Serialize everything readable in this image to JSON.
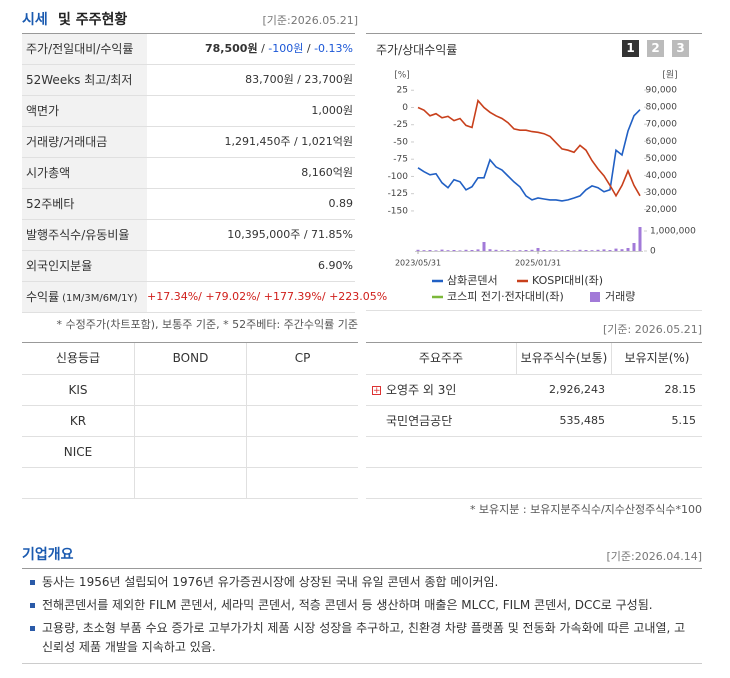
{
  "market": {
    "title_a": "시세",
    "title_b": "및 주주현황",
    "date": "[기준:2026.05.21]",
    "rows": [
      {
        "label": "주가/전일대비/수익률",
        "value": [
          {
            "text": "78,500원",
            "bold": true
          },
          {
            "text": " / "
          },
          {
            "text": "-100원",
            "color": "#1a56d6"
          },
          {
            "text": " / "
          },
          {
            "text": "-0.13%",
            "color": "#1a56d6"
          }
        ]
      },
      {
        "label": "52Weeks 최고/최저",
        "value": [
          {
            "text": "83,700원 / 23,700원"
          }
        ]
      },
      {
        "label": "액면가",
        "value": [
          {
            "text": "1,000원"
          }
        ]
      },
      {
        "label": "거래량/거래대금",
        "value": [
          {
            "text": "1,291,450주 / 1,021억원"
          }
        ]
      },
      {
        "label": "시가총액",
        "value": [
          {
            "text": "8,160억원"
          }
        ]
      },
      {
        "label": "52주베타",
        "value": [
          {
            "text": "0.89"
          }
        ]
      },
      {
        "label": "발행주식수/유동비율",
        "value": [
          {
            "text": "10,395,000주 / 71.85%"
          }
        ]
      },
      {
        "label": "외국인지분율",
        "value": [
          {
            "text": "6.90%"
          }
        ]
      },
      {
        "label": "수익률",
        "sublabel": "(1M/3M/6M/1Y)",
        "value": [
          {
            "text": "+17.34%/ +79.02%/ +177.39%/ +223.05%",
            "color": "#d0201c"
          }
        ]
      }
    ],
    "footnote": "* 수정주가(차트포함), 보통주 기준, * 52주베타: 주간수익률 기준",
    "chart_buttons": [
      "1",
      "2",
      "3"
    ],
    "active_button": 0
  },
  "credit": {
    "headers": [
      "신용등급",
      "BOND",
      "CP"
    ],
    "rows": [
      [
        "KIS"
      ],
      [
        "KR"
      ],
      [
        "NICE"
      ]
    ]
  },
  "holders": {
    "date": "[기준: 2026.05.21]",
    "headers": [
      "주요주주",
      "보유주식수(보통)",
      "보유지분(%)"
    ],
    "rows": [
      [
        "오영주 외 3인",
        "2,926,243",
        "28.15"
      ],
      [
        "국민연금공단",
        "535,485",
        "5.15"
      ]
    ],
    "note": "* 보유지분 : 보유지분주식수/지수산정주식수*100"
  },
  "overview": {
    "title": "기업개요",
    "date": "[기준:2026.04.14]",
    "items": [
      "동사는 1956년 설립되어 1976년 유가증권시장에 상장된 국내 유일 콘덴서 종합 메이커임.",
      "전해콘덴서를 제외한 FILM 콘덴서, 세라믹 콘덴서, 적층 콘덴서 등 생산하며 매출은 MLCC, FILM 콘덴서, DCC로 구성됨.",
      "고용량, 초소형 부품 수요 증가로 고부가가치 제품 시장 성장을 추구하고, 친환경 차량 플랫폼 및 전동화 가속화에 따른 고내열, 고신뢰성 제품 개발을 지속하고 있음."
    ]
  },
  "chart_data": [
    {
      "type": "line",
      "title": "주가/상대수익률",
      "y_unit": "[%]",
      "y2_unit": "[원]",
      "categories": [
        "2023/05/31",
        null,
        null,
        null,
        null,
        null,
        null,
        null,
        null,
        null,
        null,
        null,
        null,
        null,
        null,
        null,
        null,
        null,
        null,
        null,
        "2025/01/31",
        null,
        null,
        null,
        null,
        null,
        null,
        null,
        null,
        null,
        null,
        null,
        null,
        null,
        null,
        null,
        null,
        null
      ],
      "series": [
        {
          "name": "삼화콘덴서",
          "color": "#2160c4",
          "axis": "y2",
          "values": [
            44500,
            42200,
            40400,
            41000,
            35700,
            32800,
            37500,
            36300,
            31600,
            33400,
            38600,
            38600,
            49100,
            45000,
            43200,
            39700,
            36200,
            33300,
            28000,
            25700,
            26800,
            26200,
            25700,
            25700,
            25100,
            25700,
            26800,
            28000,
            31600,
            33900,
            32800,
            30400,
            31600,
            54800,
            52000,
            66000,
            75000,
            78500
          ]
        },
        {
          "name": "KOSPI대비(좌)",
          "color": "#c8401c",
          "values": [
            0,
            -4,
            -12,
            -9,
            -15,
            -13,
            -19,
            -16,
            -26,
            -29,
            10,
            0,
            -7,
            -12,
            -16,
            -22,
            -31,
            -33,
            -33,
            -35,
            -36,
            -38,
            -42,
            -51,
            -60,
            -62,
            -65,
            -55,
            -62,
            -77,
            -89,
            -99,
            -113,
            -128,
            -113,
            -92,
            -113,
            -128
          ]
        },
        {
          "name": "코스피 전기·전자대비(좌)",
          "color": "#7cb83a",
          "values": [
            null,
            null,
            null,
            null,
            null,
            null,
            null,
            null,
            null,
            null,
            null,
            null,
            null,
            null,
            null,
            null,
            null,
            null,
            null,
            null,
            null,
            null,
            null,
            null,
            null,
            null,
            null,
            null,
            null,
            null,
            null,
            null,
            null,
            null,
            null,
            null,
            null,
            null
          ]
        }
      ],
      "ylim": [
        -153,
        50
      ],
      "yticks": [
        25,
        0,
        -25,
        -50,
        -75,
        -100,
        -125,
        -150
      ],
      "y2lim": [
        18000,
        100000
      ],
      "y2ticks": [
        {
          "value": 90000,
          "label": "90,000"
        },
        {
          "value": 80000,
          "label": "80,000"
        },
        {
          "value": 70000,
          "label": "70,000"
        },
        {
          "value": 60000,
          "label": "60,000"
        },
        {
          "value": 50000,
          "label": "50,000"
        },
        {
          "value": 40000,
          "label": "40,000"
        },
        {
          "value": 30000,
          "label": "30,000"
        },
        {
          "value": 20000,
          "label": "20,000"
        }
      ]
    },
    {
      "type": "bar",
      "series": [
        {
          "name": "거래량",
          "color": "#a27ad8",
          "values": [
            60000,
            40000,
            50000,
            30000,
            70000,
            40000,
            50000,
            30000,
            60000,
            50000,
            80000,
            450000,
            90000,
            60000,
            40000,
            50000,
            30000,
            40000,
            50000,
            60000,
            150000,
            50000,
            40000,
            30000,
            40000,
            50000,
            30000,
            60000,
            50000,
            40000,
            60000,
            80000,
            50000,
            120000,
            90000,
            150000,
            400000,
            1200000
          ]
        }
      ],
      "ylim": [
        0,
        1250000
      ],
      "yticks": [
        {
          "value": 1000000,
          "label": "1,000,000"
        },
        0
      ]
    }
  ]
}
